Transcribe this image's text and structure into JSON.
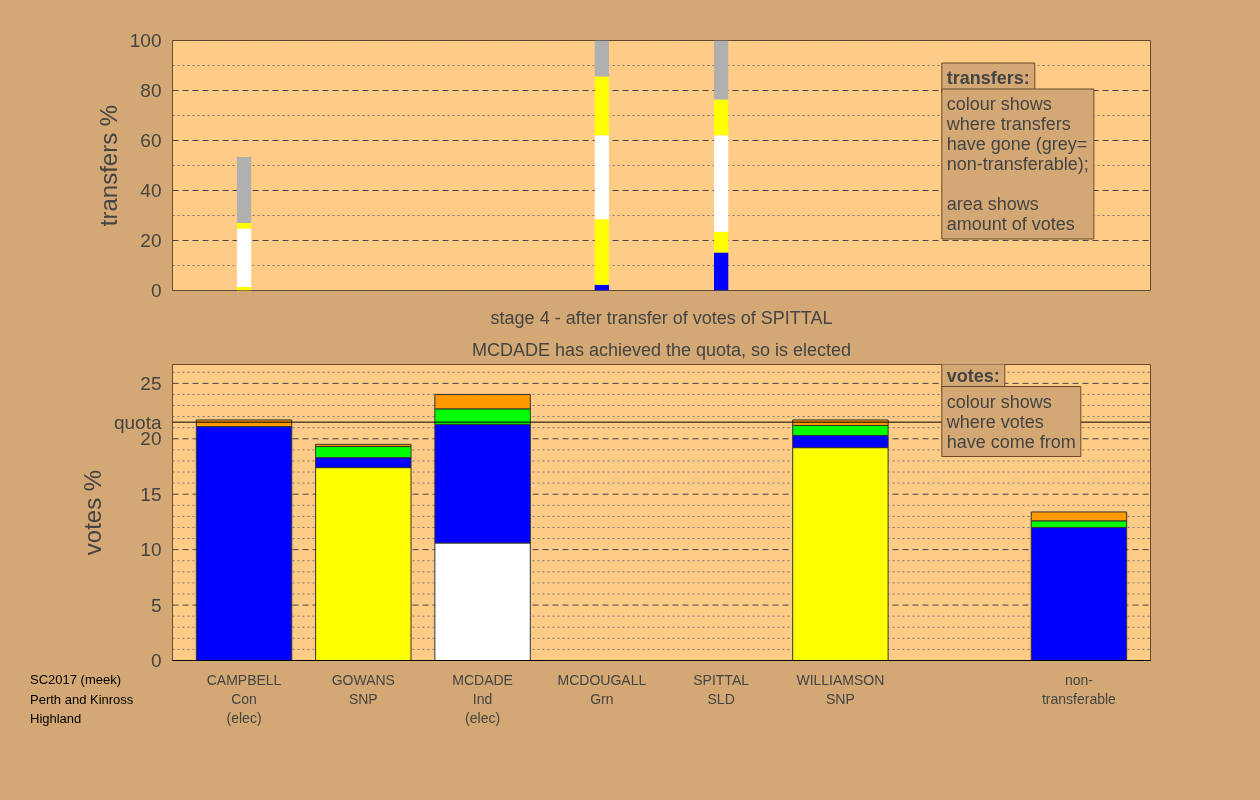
{
  "chart_data": [
    {
      "type": "bar",
      "stacked": true,
      "ylabel": "transfers %",
      "categories": [
        null,
        null,
        null,
        null,
        null,
        null,
        null,
        null
      ],
      "series": [
        {
          "color": "#0000ff",
          "values": [
            0,
            null,
            null,
            2.3,
            15.2,
            null,
            null,
            null
          ]
        },
        {
          "color": "#ffff00",
          "values": [
            1.4,
            null,
            null,
            26.2,
            8.3,
            null,
            null,
            null
          ]
        },
        {
          "color": "#ffffff",
          "values": [
            23.4,
            null,
            null,
            33.6,
            38.6,
            null,
            null,
            null
          ]
        },
        {
          "color": "#ffff00",
          "values": [
            2.2,
            null,
            null,
            23.5,
            14.3,
            null,
            null,
            null
          ]
        },
        {
          "color": "#b0b0b0",
          "values": [
            26.4,
            null,
            null,
            14.4,
            23.6,
            null,
            null,
            null
          ]
        }
      ],
      "ylim": [
        0,
        100
      ],
      "yticks": [
        0,
        {
          "value": 10,
          "label": null
        },
        20,
        {
          "value": 30,
          "label": null
        },
        40,
        {
          "value": 50,
          "label": null
        },
        60,
        {
          "value": 70,
          "label": null
        },
        80,
        {
          "value": 90,
          "label": null
        },
        100
      ],
      "grid": "y",
      "tick_labels": "y",
      "annotations": [
        "transfers:",
        "colour shows\nwhere transfers\nhave gone (grey=\nnon-transferable);\n\narea shows\namount of votes"
      ]
    },
    {
      "type": "bar",
      "stacked": true,
      "title": "stage 4 - after transfer of votes of SPITTAL",
      "subtitle": "MCDADE has achieved the quota, so is elected",
      "ylabel": "votes %",
      "categories": [
        "CAMPBELL\nCon\n(elec)",
        "GOWANS\nSNP",
        "MCDADE\nInd\n(elec)",
        "MCDOUGALL\nGrn",
        "SPITTAL\nSLD",
        "WILLIAMSON\nSNP",
        null,
        "non-\ntransferable"
      ],
      "series": [
        {
          "color": "#ffffff",
          "values": [
            0,
            0,
            10.6,
            0,
            0,
            0,
            null,
            0
          ]
        },
        {
          "color": "#ffff00",
          "values": [
            0,
            17.4,
            0,
            0,
            0,
            19.2,
            null,
            0
          ]
        },
        {
          "color": "#0000ff",
          "values": [
            21.1,
            0.9,
            10.7,
            0,
            0,
            1.1,
            null,
            12.0
          ]
        },
        {
          "color": "#00ff00",
          "values": [
            0,
            1.0,
            1.4,
            0,
            0,
            0.9,
            null,
            0.6
          ]
        },
        {
          "color": "#ff9900",
          "values": [
            0.6,
            0.2,
            1.3,
            0,
            0,
            0.5,
            null,
            0.8
          ]
        }
      ],
      "ylim": [
        0,
        26.7
      ],
      "yticks": [
        0,
        {
          "value": 1,
          "label": null
        },
        {
          "value": 2,
          "label": null
        },
        {
          "value": 3,
          "label": null
        },
        {
          "value": 4,
          "label": null
        },
        5,
        {
          "value": 6,
          "label": null
        },
        {
          "value": 7,
          "label": null
        },
        {
          "value": 8,
          "label": null
        },
        {
          "value": 9,
          "label": null
        },
        10,
        {
          "value": 11,
          "label": null
        },
        {
          "value": 12,
          "label": null
        },
        {
          "value": 13,
          "label": null
        },
        {
          "value": 14,
          "label": null
        },
        15,
        {
          "value": 16,
          "label": null
        },
        {
          "value": 17,
          "label": null
        },
        {
          "value": 18,
          "label": null
        },
        {
          "value": 19,
          "label": null
        },
        20,
        {
          "value": 21,
          "label": null
        },
        {
          "value": 22,
          "label": null
        },
        {
          "value": 23,
          "label": null
        },
        {
          "value": 24,
          "label": null
        },
        25,
        {
          "value": 26,
          "label": null
        }
      ],
      "grid": "y",
      "ref_lines": [
        {
          "axis": "y",
          "value": 21.5,
          "label": "quota"
        }
      ],
      "annotations": [
        "votes:",
        "colour shows\nwhere votes\nhave come from",
        "SC2017 (meek)\nPerth and Kinross\nHighland"
      ]
    }
  ]
}
